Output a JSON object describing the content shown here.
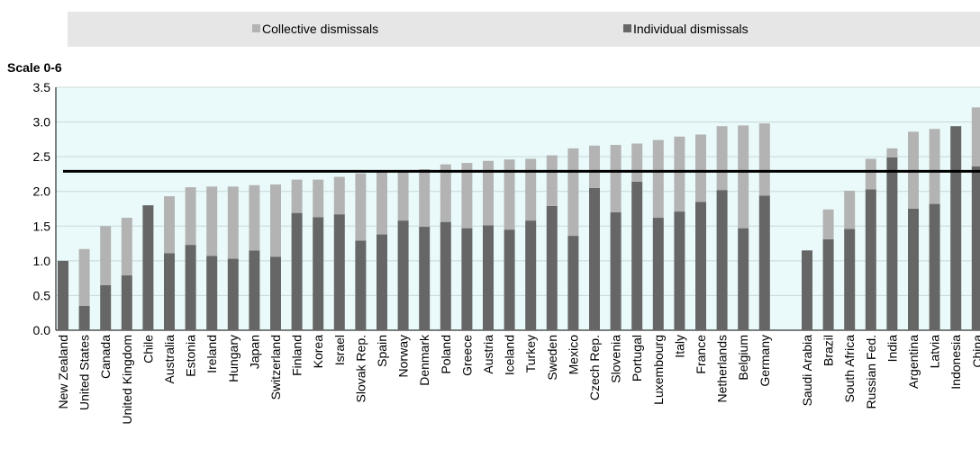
{
  "chart_data": {
    "type": "stacked_bar",
    "y_label": "Scale 0-6",
    "categories": [
      "New Zealand",
      "United States",
      "Canada",
      "United Kingdom",
      "Chile",
      "Australia",
      "Estonia",
      "Ireland",
      "Hungary",
      "Japan",
      "Switzerland",
      "Finland",
      "Korea",
      "Israel",
      "Slovak Rep.",
      "Spain",
      "Norway",
      "Denmark",
      "Poland",
      "Greece",
      "Austria",
      "Iceland",
      "Turkey",
      "Sweden",
      "Mexico",
      "Czech Rep.",
      "Slovenia",
      "Portugal",
      "Luxembourg",
      "Italy",
      "France",
      "Netherlands",
      "Belgium",
      "Germany",
      null,
      "Saudi Arabia",
      "Brazil",
      "South Africa",
      "Russian Fed.",
      "India",
      "Argentina",
      "Latvia",
      "Indonesia",
      "China"
    ],
    "series": [
      {
        "name": "Collective dismissals",
        "color": "#b3b3b3",
        "stack_order": 1,
        "values": [
          0,
          0.82,
          0.85,
          0.83,
          0,
          0.82,
          0.83,
          1.0,
          1.04,
          0.94,
          1.04,
          0.48,
          0.54,
          0.54,
          0.97,
          0.9,
          0.71,
          0.83,
          0.83,
          0.94,
          0.93,
          1.01,
          0.89,
          0.73,
          1.26,
          0.61,
          0.97,
          0.55,
          1.12,
          1.08,
          0.97,
          0.92,
          1.48,
          1.04,
          null,
          0,
          0.43,
          0.55,
          0.44,
          0.13,
          1.11,
          1.08,
          0,
          0.85
        ]
      },
      {
        "name": "Individual dismissals",
        "color": "#666666",
        "stack_order": 0,
        "values": [
          1.0,
          0.35,
          0.65,
          0.79,
          1.8,
          1.11,
          1.23,
          1.07,
          1.03,
          1.15,
          1.06,
          1.69,
          1.63,
          1.67,
          1.29,
          1.38,
          1.58,
          1.49,
          1.56,
          1.47,
          1.51,
          1.45,
          1.58,
          1.79,
          1.36,
          2.05,
          1.7,
          2.14,
          1.62,
          1.71,
          1.85,
          2.02,
          1.47,
          1.94,
          null,
          1.15,
          1.31,
          1.46,
          2.03,
          2.49,
          1.75,
          1.82,
          2.94,
          2.36
        ]
      }
    ],
    "reference_line": 2.29,
    "ylim": [
      0,
      3.5
    ],
    "yticks": [
      {
        "value": 0,
        "label": "0.0"
      },
      0.5,
      {
        "value": 1,
        "label": "1.0"
      },
      1.5,
      {
        "value": 2,
        "label": "2.0"
      },
      2.5,
      {
        "value": 3,
        "label": "3.0"
      },
      3.5
    ],
    "grid": true
  }
}
